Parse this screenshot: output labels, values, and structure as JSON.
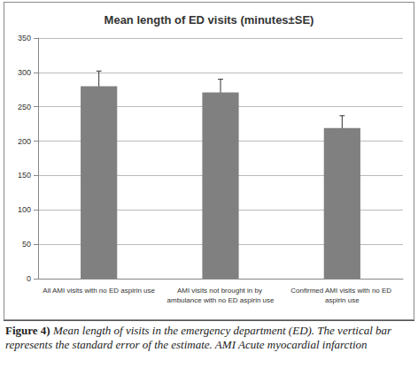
{
  "chart_data": {
    "type": "bar",
    "title": "Mean length of ED visits (minutes±SE)",
    "categories": [
      "All AMI visits with no ED aspirin use",
      "AMI visits not brought in by ambulance with no ED aspirin use",
      "Confirmed AMI visits with no ED aspirin use"
    ],
    "values": [
      280,
      271,
      219
    ],
    "errors": [
      22,
      19,
      18
    ],
    "color": "#808080",
    "ylim": [
      0,
      350
    ],
    "yticks": [
      0,
      50,
      100,
      150,
      200,
      250,
      300,
      350
    ],
    "grid": true,
    "caption_label": "Figure 4)",
    "caption": "Mean length of visits in the emergency department (ED). The vertical bar represents the standard error of the estimate. AMI Acute myocardial infarction"
  }
}
